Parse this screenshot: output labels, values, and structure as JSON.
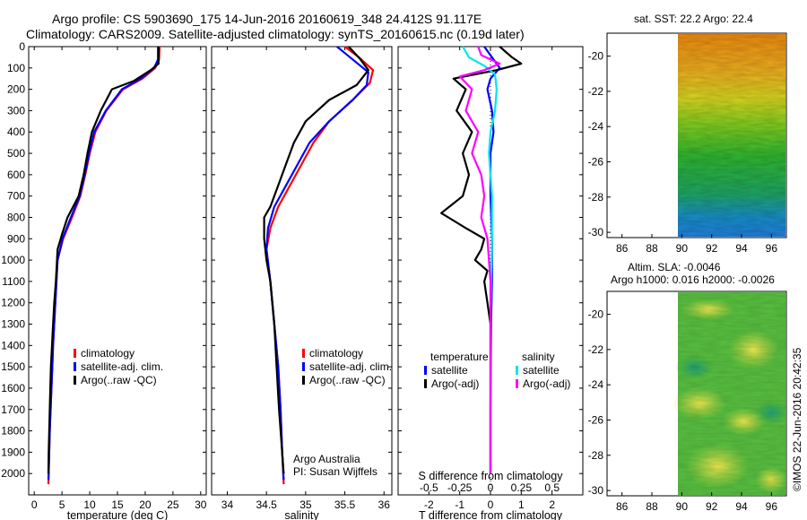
{
  "header": {
    "line1": "Argo profile: CS 5903690_175 14-Jun-2016 20160619_348 24.412S 91.117E",
    "line2": "Climatology: CARS2009. Satellite-adjusted climatology: synTS_20160615.nc (0.19d later)"
  },
  "side_label": "©IMOS 22-Jun-2016 20:42:35",
  "colors": {
    "climatology": "#ff0000",
    "satellite": "#0000ff",
    "argo": "#000000",
    "salinity_sat": "#00e5ee",
    "salinity_argo": "#ff00ff"
  },
  "chart_data": [
    {
      "type": "line",
      "id": "temperature",
      "xlabel": "temperature (deg C)",
      "xlim": [
        -1,
        31
      ],
      "ylim": [
        2100,
        0
      ],
      "xticks": [
        0,
        5,
        10,
        15,
        20,
        25,
        30
      ],
      "yticks": [
        0,
        100,
        200,
        300,
        400,
        500,
        600,
        700,
        800,
        900,
        1000,
        1100,
        1200,
        1300,
        1400,
        1500,
        1600,
        1700,
        1800,
        1900,
        2000
      ],
      "legend": [
        "climatology",
        "satellite-adj. clim.",
        "Argo(..raw -QC)"
      ],
      "series": [
        {
          "name": "climatology",
          "color": "#ff0000",
          "points": [
            [
              22.6,
              0
            ],
            [
              22.5,
              60
            ],
            [
              21.8,
              100
            ],
            [
              19.5,
              150
            ],
            [
              16,
              200
            ],
            [
              13,
              300
            ],
            [
              11,
              400
            ],
            [
              10,
              500
            ],
            [
              9.2,
              600
            ],
            [
              8.3,
              700
            ],
            [
              6.8,
              800
            ],
            [
              5.2,
              900
            ],
            [
              4.2,
              1000
            ],
            [
              3.8,
              1200
            ],
            [
              3.4,
              1400
            ],
            [
              3.1,
              1600
            ],
            [
              2.8,
              1800
            ],
            [
              2.6,
              2000
            ],
            [
              2.55,
              2050
            ]
          ]
        },
        {
          "name": "satellite-adj. clim.",
          "color": "#0000ff",
          "points": [
            [
              22.3,
              0
            ],
            [
              22.3,
              60
            ],
            [
              21.6,
              100
            ],
            [
              19.2,
              150
            ],
            [
              15.8,
              200
            ],
            [
              12.9,
              300
            ],
            [
              10.8,
              400
            ],
            [
              9.9,
              500
            ],
            [
              9.1,
              600
            ],
            [
              8.2,
              700
            ],
            [
              6.6,
              800
            ],
            [
              5.1,
              900
            ],
            [
              4.2,
              1000
            ],
            [
              3.8,
              1200
            ],
            [
              3.4,
              1400
            ],
            [
              3.1,
              1600
            ],
            [
              2.8,
              1800
            ],
            [
              2.6,
              2000
            ],
            [
              2.55,
              2030
            ]
          ]
        },
        {
          "name": "Argo(..raw -QC)",
          "color": "#000000",
          "points": [
            [
              22.4,
              0
            ],
            [
              22.4,
              80
            ],
            [
              21,
              110
            ],
            [
              18,
              160
            ],
            [
              14,
              200
            ],
            [
              12,
              300
            ],
            [
              10.4,
              400
            ],
            [
              9.6,
              500
            ],
            [
              8.9,
              600
            ],
            [
              8,
              700
            ],
            [
              6,
              800
            ],
            [
              5,
              880
            ],
            [
              4.2,
              950
            ],
            [
              4.1,
              1000
            ],
            [
              3.9,
              1100
            ],
            [
              3.6,
              1200
            ],
            [
              3.4,
              1300
            ],
            [
              3.2,
              1400
            ],
            [
              3,
              1500
            ],
            [
              2.9,
              1600
            ],
            [
              2.8,
              1700
            ],
            [
              2.7,
              1800
            ],
            [
              2.6,
              1900
            ],
            [
              2.55,
              2000
            ]
          ]
        }
      ]
    },
    {
      "type": "line",
      "id": "salinity",
      "xlabel": "salinity",
      "xlim": [
        33.8,
        36.1
      ],
      "ylim": [
        2100,
        0
      ],
      "xticks": [
        34,
        34.5,
        35,
        35.5,
        36
      ],
      "legend": [
        "climatology",
        "satellite-adj. clim.",
        "Argo(..raw -QC)"
      ],
      "annotation": [
        "Argo Australia",
        "PI: Susan Wijffels"
      ],
      "series": [
        {
          "name": "climatology",
          "color": "#ff0000",
          "points": [
            [
              35.5,
              0
            ],
            [
              35.68,
              50
            ],
            [
              35.86,
              110
            ],
            [
              35.82,
              170
            ],
            [
              35.6,
              250
            ],
            [
              35.3,
              350
            ],
            [
              35.1,
              450
            ],
            [
              34.95,
              550
            ],
            [
              34.8,
              650
            ],
            [
              34.65,
              750
            ],
            [
              34.55,
              850
            ],
            [
              34.5,
              950
            ],
            [
              34.55,
              1100
            ],
            [
              34.6,
              1300
            ],
            [
              34.65,
              1500
            ],
            [
              34.68,
              1700
            ],
            [
              34.7,
              1900
            ],
            [
              34.72,
              2050
            ]
          ]
        },
        {
          "name": "satellite-adj. clim.",
          "color": "#0000ff",
          "points": [
            [
              35.4,
              0
            ],
            [
              35.6,
              60
            ],
            [
              35.8,
              120
            ],
            [
              35.78,
              180
            ],
            [
              35.6,
              250
            ],
            [
              35.3,
              350
            ],
            [
              35.05,
              450
            ],
            [
              34.9,
              550
            ],
            [
              34.75,
              650
            ],
            [
              34.6,
              750
            ],
            [
              34.52,
              850
            ],
            [
              34.5,
              950
            ],
            [
              34.55,
              1100
            ],
            [
              34.6,
              1300
            ],
            [
              34.65,
              1500
            ],
            [
              34.68,
              1700
            ],
            [
              34.7,
              1900
            ],
            [
              34.72,
              2030
            ]
          ]
        },
        {
          "name": "Argo(..raw -QC)",
          "color": "#000000",
          "points": [
            [
              35.55,
              0
            ],
            [
              35.7,
              60
            ],
            [
              35.8,
              110
            ],
            [
              35.65,
              180
            ],
            [
              35.3,
              250
            ],
            [
              35.0,
              350
            ],
            [
              34.85,
              450
            ],
            [
              34.75,
              550
            ],
            [
              34.65,
              650
            ],
            [
              34.55,
              750
            ],
            [
              34.47,
              800
            ],
            [
              34.47,
              900
            ],
            [
              34.5,
              1000
            ],
            [
              34.55,
              1100
            ],
            [
              34.6,
              1300
            ],
            [
              34.63,
              1500
            ],
            [
              34.66,
              1700
            ],
            [
              34.7,
              1900
            ],
            [
              34.72,
              2000
            ]
          ]
        }
      ]
    },
    {
      "type": "line",
      "id": "difference",
      "xlabel": "T difference from climatology",
      "xlabel_top": "S difference from climatology",
      "xlim": [
        -3,
        3
      ],
      "ylim": [
        2100,
        0
      ],
      "xticks": [
        -2,
        -1,
        0,
        1,
        2
      ],
      "xticks_top": [
        "-0.5",
        "-0.25",
        "0",
        "0.25",
        "0.5"
      ],
      "legend_titles": [
        "temperature",
        "salinity"
      ],
      "legend": [
        "satellite",
        "Argo(-adj)",
        "satellite",
        "Argo(-adj)"
      ],
      "series": [
        {
          "name": "satellite",
          "color": "#0000ff",
          "points": [
            [
              -0.2,
              0
            ],
            [
              0.1,
              60
            ],
            [
              0.3,
              100
            ],
            [
              0,
              150
            ],
            [
              -0.1,
              200
            ],
            [
              0.05,
              300
            ],
            [
              0.1,
              400
            ],
            [
              0,
              500
            ],
            [
              0,
              700
            ],
            [
              0.05,
              900
            ],
            [
              0.05,
              1100
            ],
            [
              0.02,
              1300
            ],
            [
              0.01,
              1500
            ],
            [
              0,
              1700
            ],
            [
              0,
              1900
            ],
            [
              0,
              2000
            ]
          ]
        },
        {
          "name": "Argo(-adj)",
          "color": "#000000",
          "points": [
            [
              0.3,
              0
            ],
            [
              0.7,
              50
            ],
            [
              1.0,
              80
            ],
            [
              0.2,
              110
            ],
            [
              -1.2,
              150
            ],
            [
              -0.8,
              200
            ],
            [
              -1.1,
              300
            ],
            [
              -0.6,
              400
            ],
            [
              -0.9,
              500
            ],
            [
              -0.7,
              600
            ],
            [
              -0.9,
              700
            ],
            [
              -1.6,
              780
            ],
            [
              -0.8,
              850
            ],
            [
              -0.2,
              900
            ],
            [
              -0.3,
              950
            ],
            [
              -0.5,
              1000
            ],
            [
              -0.1,
              1050
            ],
            [
              -0.2,
              1100
            ],
            [
              -0.1,
              1200
            ],
            [
              0,
              1300
            ],
            [
              0,
              1500
            ],
            [
              0,
              1700
            ],
            [
              0,
              1900
            ],
            [
              0,
              2000
            ]
          ]
        },
        {
          "name": "satellite",
          "color": "#00e5ee",
          "points": [
            [
              -0.9,
              0
            ],
            [
              -0.7,
              50
            ],
            [
              -0.2,
              90
            ],
            [
              0.15,
              130
            ],
            [
              0.2,
              200
            ],
            [
              0.15,
              300
            ],
            [
              0,
              400
            ],
            [
              -0.05,
              500
            ],
            [
              0,
              600
            ],
            [
              0.05,
              700
            ],
            [
              0.05,
              900
            ],
            [
              0.02,
              1100
            ],
            [
              0,
              1300
            ],
            [
              0,
              1500
            ],
            [
              0,
              1700
            ],
            [
              0,
              1900
            ],
            [
              0,
              2000
            ]
          ]
        },
        {
          "name": "Argo(-adj)",
          "color": "#ff00ff",
          "points": [
            [
              -0.4,
              0
            ],
            [
              -0.3,
              40
            ],
            [
              0.3,
              80
            ],
            [
              -0.2,
              110
            ],
            [
              -1,
              140
            ],
            [
              -0.6,
              200
            ],
            [
              -0.8,
              300
            ],
            [
              -0.4,
              400
            ],
            [
              -0.6,
              500
            ],
            [
              -0.3,
              600
            ],
            [
              -0.2,
              700
            ],
            [
              -0.3,
              800
            ],
            [
              -0.1,
              900
            ],
            [
              -0.05,
              1000
            ],
            [
              0,
              1100
            ],
            [
              0,
              1300
            ],
            [
              0,
              1500
            ],
            [
              0,
              1700
            ],
            [
              0,
              1900
            ],
            [
              0,
              2000
            ]
          ]
        }
      ]
    },
    {
      "type": "heatmap",
      "id": "sst-map",
      "title": "sat. SST: 22.2 Argo: 22.4",
      "xlim": [
        85,
        97
      ],
      "ylim": [
        -30.3,
        -18.7
      ],
      "xticks": [
        86,
        88,
        90,
        92,
        94,
        96
      ],
      "yticks": [
        -20,
        -22,
        -24,
        -26,
        -28,
        -30
      ]
    },
    {
      "type": "heatmap",
      "id": "sla-map",
      "title": "Altim. SLA: -0.0046",
      "subtitle": "Argo h1000: 0.016 h2000: -0.0026",
      "xlim": [
        85,
        97
      ],
      "ylim": [
        -30.3,
        -18.7
      ],
      "xticks": [
        86,
        88,
        90,
        92,
        94,
        96
      ],
      "yticks": [
        -20,
        -22,
        -24,
        -26,
        -28,
        -30
      ]
    }
  ]
}
